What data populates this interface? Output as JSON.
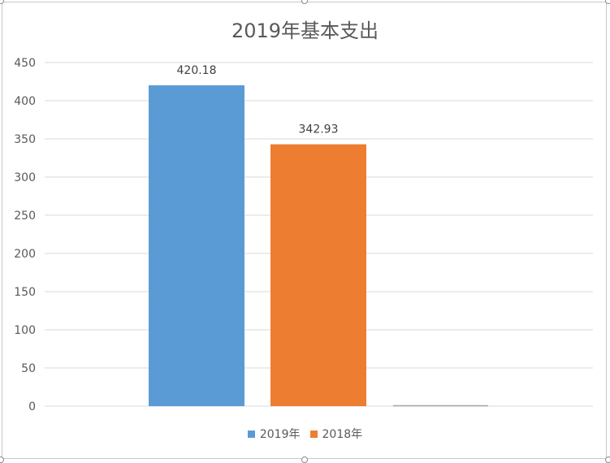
{
  "chart_data": {
    "type": "bar",
    "title": "2019年基本支出",
    "categories": [
      "2019年",
      "2018年"
    ],
    "series": [
      {
        "name": "2019年",
        "value": 420.18,
        "label": "420.18",
        "color": "#5b9bd5"
      },
      {
        "name": "2018年",
        "value": 342.93,
        "label": "342.93",
        "color": "#ed7d31"
      }
    ],
    "yticks": [
      "0",
      "50",
      "100",
      "150",
      "200",
      "250",
      "300",
      "350",
      "400",
      "450"
    ],
    "ylim": [
      0,
      450
    ],
    "grid": true,
    "legend_position": "bottom"
  }
}
